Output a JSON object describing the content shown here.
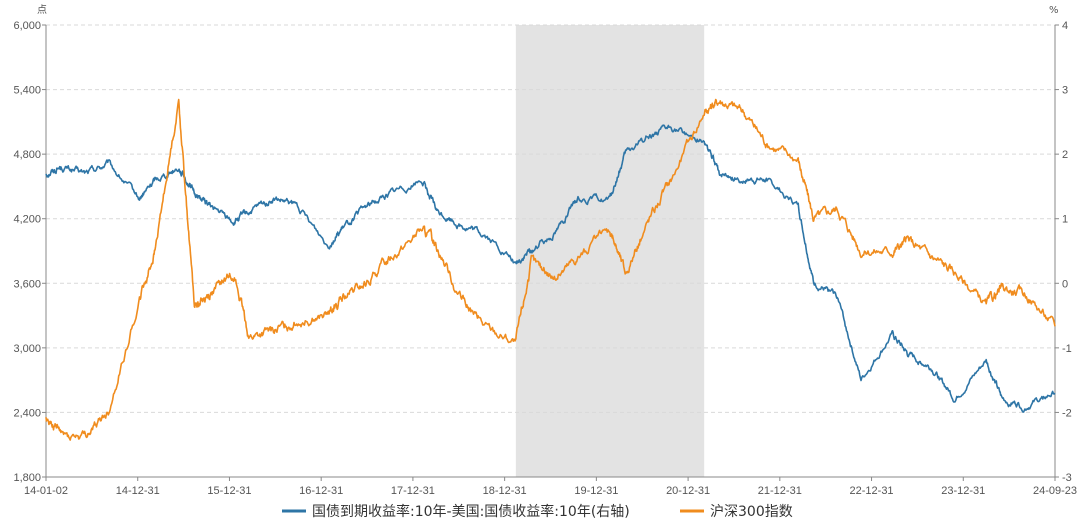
{
  "chart_data": {
    "type": "line",
    "left_unit": "点",
    "right_unit": "%",
    "x_tick_labels": [
      "14-01-02",
      "14-12-31",
      "15-12-31",
      "16-12-31",
      "17-12-31",
      "18-12-31",
      "19-12-31",
      "20-12-31",
      "21-12-31",
      "22-12-31",
      "23-12-31",
      "24-09-23"
    ],
    "y_left": {
      "min": 1800,
      "max": 6000,
      "ticks": [
        "1,800",
        "2,400",
        "3,000",
        "3,600",
        "4,200",
        "4,800",
        "5,400",
        "6,000"
      ]
    },
    "y_right": {
      "min": -3,
      "max": 4,
      "ticks": [
        "-3",
        "-2",
        "-1",
        "0",
        "1",
        "2",
        "3",
        "4"
      ]
    },
    "shaded_period": {
      "from": "2018-12-31",
      "to": "2020-12-31"
    },
    "series": [
      {
        "name": "国债到期收益率:10年-美国:国债收益率:10年(右轴)",
        "axis": "right",
        "color": "#2e75a6",
        "points": [
          [
            "2014-01-02",
            1.7
          ],
          [
            "2014-03-01",
            1.8
          ],
          [
            "2014-06-01",
            1.7
          ],
          [
            "2014-09-01",
            1.85
          ],
          [
            "2014-12-31",
            1.3
          ],
          [
            "2015-03-01",
            1.6
          ],
          [
            "2015-06-01",
            1.8
          ],
          [
            "2015-08-01",
            1.4
          ],
          [
            "2015-10-01",
            1.2
          ],
          [
            "2015-12-31",
            0.95
          ],
          [
            "2016-03-01",
            1.1
          ],
          [
            "2016-06-01",
            1.3
          ],
          [
            "2016-09-01",
            1.2
          ],
          [
            "2016-12-31",
            0.6
          ],
          [
            "2017-03-01",
            0.85
          ],
          [
            "2017-06-01",
            1.2
          ],
          [
            "2017-09-01",
            1.4
          ],
          [
            "2017-12-31",
            1.6
          ],
          [
            "2018-03-01",
            1.1
          ],
          [
            "2018-06-01",
            0.9
          ],
          [
            "2018-09-01",
            0.75
          ],
          [
            "2018-12-31",
            0.3
          ],
          [
            "2019-03-01",
            0.5
          ],
          [
            "2019-06-01",
            0.8
          ],
          [
            "2019-09-01",
            1.3
          ],
          [
            "2019-12-31",
            1.3
          ],
          [
            "2020-03-01",
            2.0
          ],
          [
            "2020-06-01",
            2.3
          ],
          [
            "2020-09-01",
            2.4
          ],
          [
            "2020-12-31",
            2.2
          ],
          [
            "2021-03-01",
            1.7
          ],
          [
            "2021-06-01",
            1.6
          ],
          [
            "2021-09-01",
            1.6
          ],
          [
            "2021-12-31",
            1.2
          ],
          [
            "2022-03-01",
            0.0
          ],
          [
            "2022-06-01",
            -0.2
          ],
          [
            "2022-09-01",
            -1.5
          ],
          [
            "2022-12-31",
            -0.8
          ],
          [
            "2023-03-01",
            -1.1
          ],
          [
            "2023-06-01",
            -1.3
          ],
          [
            "2023-09-01",
            -1.8
          ],
          [
            "2023-12-31",
            -1.2
          ],
          [
            "2024-03-01",
            -1.8
          ],
          [
            "2024-06-01",
            -1.9
          ],
          [
            "2024-09-23",
            -1.7
          ]
        ]
      },
      {
        "name": "沪深300指数",
        "axis": "left",
        "color": "#f08c1e",
        "points": [
          [
            "2014-01-02",
            2350
          ],
          [
            "2014-03-01",
            2200
          ],
          [
            "2014-06-01",
            2170
          ],
          [
            "2014-09-01",
            2400
          ],
          [
            "2014-12-31",
            3450
          ],
          [
            "2015-03-01",
            3900
          ],
          [
            "2015-06-01",
            5300
          ],
          [
            "2015-08-01",
            3400
          ],
          [
            "2015-10-01",
            3500
          ],
          [
            "2015-12-31",
            3700
          ],
          [
            "2016-03-01",
            3100
          ],
          [
            "2016-06-01",
            3150
          ],
          [
            "2016-09-01",
            3250
          ],
          [
            "2016-12-31",
            3300
          ],
          [
            "2017-03-01",
            3450
          ],
          [
            "2017-06-01",
            3600
          ],
          [
            "2017-09-01",
            3850
          ],
          [
            "2017-12-31",
            4100
          ],
          [
            "2018-03-01",
            3950
          ],
          [
            "2018-06-01",
            3450
          ],
          [
            "2018-09-01",
            3200
          ],
          [
            "2018-12-31",
            3050
          ],
          [
            "2019-03-01",
            3800
          ],
          [
            "2019-06-01",
            3650
          ],
          [
            "2019-09-01",
            3850
          ],
          [
            "2019-12-31",
            4100
          ],
          [
            "2020-03-01",
            3700
          ],
          [
            "2020-06-01",
            4200
          ],
          [
            "2020-09-01",
            4600
          ],
          [
            "2020-12-31",
            5200
          ],
          [
            "2021-03-01",
            5300
          ],
          [
            "2021-06-01",
            5200
          ],
          [
            "2021-09-01",
            4900
          ],
          [
            "2021-12-31",
            4750
          ],
          [
            "2022-03-01",
            4200
          ],
          [
            "2022-06-01",
            4300
          ],
          [
            "2022-09-01",
            3900
          ],
          [
            "2022-12-31",
            3900
          ],
          [
            "2023-03-01",
            4000
          ],
          [
            "2023-06-01",
            3850
          ],
          [
            "2023-09-01",
            3700
          ],
          [
            "2023-12-31",
            3400
          ],
          [
            "2024-03-01",
            3550
          ],
          [
            "2024-06-01",
            3500
          ],
          [
            "2024-09-23",
            3200
          ]
        ]
      }
    ]
  }
}
